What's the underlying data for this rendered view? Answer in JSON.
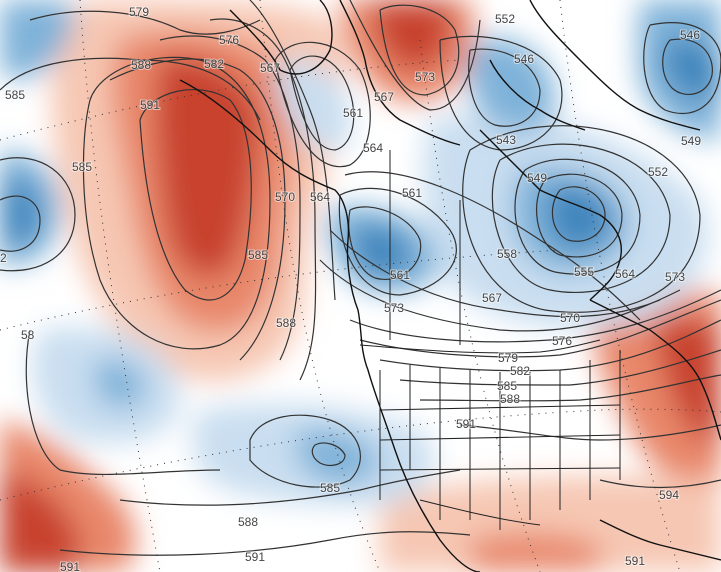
{
  "colors": {
    "warm_strong": "#c8432e",
    "warm_mid": "#e8876a",
    "warm_light": "#f6c7b3",
    "cool_strong": "#3f86bd",
    "cool_mid": "#7fb2d9",
    "cool_light": "#c9def0",
    "contour": "#333333",
    "coast": "#111111",
    "border": "#222222"
  },
  "contour_labels": {
    "l579": "579",
    "l576": "576",
    "l588a": "588",
    "l582": "582",
    "l567a": "567",
    "l585a": "585",
    "l591a": "591",
    "l561a": "561",
    "l573a": "573",
    "l567b": "567",
    "l564a": "564",
    "l552a": "552",
    "l546a": "546",
    "l546b": "546",
    "l543": "543",
    "l549a": "549",
    "l549b": "549",
    "l552b": "552",
    "l561b": "561",
    "l570a": "570",
    "l564b": "564",
    "l585b": "585",
    "l2": "2",
    "l585c": "585",
    "l561c": "561",
    "l558": "558",
    "l555": "555",
    "l564c": "564",
    "l573b": "573",
    "l567c": "567",
    "l573c": "573",
    "l570b": "570",
    "l576b": "576",
    "l579b": "579",
    "l582b": "582",
    "l585d": "585",
    "l588b": "588",
    "l588c": "588",
    "l591b": "591",
    "l58x": "58",
    "l585e": "585",
    "l588d": "588",
    "l591c": "591",
    "l594": "594",
    "l591d": "591",
    "l591e": "591"
  }
}
